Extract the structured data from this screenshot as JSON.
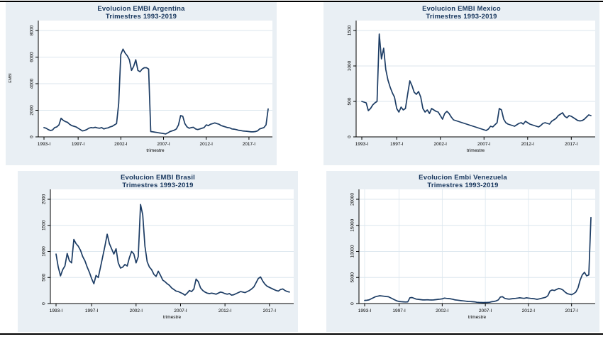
{
  "theme": {
    "page_bg": "#ffffff",
    "panel_bg": "#e9eff4",
    "plot_bg": "#ffffff",
    "grid_color": "#dbe6ee",
    "line_color": "#1c3c64",
    "title_color": "#17365d",
    "axis_color": "#000000",
    "rule_color": "#000000"
  },
  "chart_data": [
    {
      "type": "line",
      "country": "Argentina",
      "title": "Evolucion EMBI Argentina",
      "subtitle": "Trimestres 1993-2019",
      "xlabel": "trimestre",
      "ylabel": "EMBI",
      "x_unit": "quarter",
      "x_range": [
        "1993-I",
        "2019-II"
      ],
      "ylim": [
        0,
        8000
      ],
      "yticks": [
        0,
        2000,
        4000,
        6000,
        8000
      ],
      "xticks": [
        {
          "q": 0,
          "label": "1993-I"
        },
        {
          "q": 16,
          "label": "1997-I"
        },
        {
          "q": 36,
          "label": "2002-I"
        },
        {
          "q": 56,
          "label": "2007-I"
        },
        {
          "q": 76,
          "label": "2012-I"
        },
        {
          "q": 96,
          "label": "2017-I"
        }
      ],
      "grid_horizontal": true,
      "grid_vertical": false,
      "values": [
        700,
        650,
        550,
        480,
        520,
        700,
        750,
        900,
        1400,
        1250,
        1150,
        1100,
        950,
        850,
        800,
        750,
        650,
        550,
        450,
        480,
        550,
        650,
        700,
        680,
        720,
        680,
        650,
        700,
        600,
        650,
        680,
        750,
        800,
        900,
        1000,
        2500,
        6200,
        6600,
        6300,
        6100,
        5800,
        5000,
        5300,
        5800,
        5000,
        4900,
        5100,
        5200,
        5200,
        5100,
        400,
        380,
        350,
        330,
        300,
        280,
        250,
        220,
        300,
        400,
        450,
        500,
        600,
        900,
        1600,
        1550,
        1000,
        750,
        650,
        700,
        720,
        600,
        550,
        600,
        650,
        700,
        900,
        850,
        950,
        1000,
        1050,
        1000,
        950,
        850,
        800,
        750,
        700,
        680,
        600,
        580,
        550,
        500,
        480,
        450,
        430,
        420,
        400,
        380,
        380,
        400,
        450,
        600,
        650,
        700,
        900,
        2100
      ]
    },
    {
      "type": "line",
      "country": "Mexico",
      "title": "Evolucion EMBI Mexico",
      "subtitle": "Trimestres 1993-2019",
      "xlabel": "trimestre",
      "ylabel": "",
      "x_unit": "quarter",
      "x_range": [
        "1993-I",
        "2019-II"
      ],
      "ylim": [
        0,
        1500
      ],
      "yticks": [
        0,
        500,
        1000,
        1500
      ],
      "xticks": [
        {
          "q": 0,
          "label": "1993-I"
        },
        {
          "q": 16,
          "label": "1997-I"
        },
        {
          "q": 36,
          "label": "2002-I"
        },
        {
          "q": 56,
          "label": "2007-I"
        },
        {
          "q": 76,
          "label": "2012-I"
        },
        {
          "q": 96,
          "label": "2017-I"
        }
      ],
      "grid_horizontal": true,
      "grid_vertical": false,
      "values": [
        500,
        490,
        480,
        370,
        400,
        450,
        480,
        500,
        1450,
        1100,
        1250,
        950,
        800,
        700,
        620,
        560,
        400,
        350,
        420,
        380,
        400,
        600,
        790,
        720,
        630,
        600,
        640,
        560,
        400,
        350,
        380,
        330,
        400,
        380,
        360,
        350,
        300,
        250,
        330,
        360,
        330,
        280,
        240,
        230,
        220,
        210,
        200,
        190,
        180,
        170,
        160,
        150,
        140,
        130,
        120,
        110,
        100,
        90,
        110,
        150,
        140,
        170,
        200,
        400,
        380,
        250,
        200,
        180,
        170,
        160,
        150,
        170,
        190,
        200,
        180,
        220,
        200,
        180,
        170,
        160,
        150,
        140,
        160,
        190,
        200,
        190,
        180,
        220,
        240,
        260,
        300,
        320,
        340,
        290,
        270,
        300,
        290,
        270,
        250,
        230,
        225,
        230,
        250,
        280,
        310,
        300
      ]
    },
    {
      "type": "line",
      "country": "Brasil",
      "title": "Evolucion EMBI Brasil",
      "subtitle": "Trimestres 1993-2019",
      "xlabel": "trimestre",
      "ylabel": "",
      "x_unit": "quarter",
      "x_range": [
        "1993-I",
        "2019-II"
      ],
      "ylim": [
        0,
        2000
      ],
      "yticks": [
        0,
        500,
        1000,
        1500,
        2000
      ],
      "xticks": [
        {
          "q": 0,
          "label": "1993-I"
        },
        {
          "q": 16,
          "label": "1997-I"
        },
        {
          "q": 36,
          "label": "2002-I"
        },
        {
          "q": 56,
          "label": "2007-I"
        },
        {
          "q": 76,
          "label": "2012-I"
        },
        {
          "q": 96,
          "label": "2017-I"
        }
      ],
      "grid_horizontal": true,
      "grid_vertical": false,
      "values": [
        950,
        700,
        530,
        650,
        720,
        960,
        820,
        780,
        1230,
        1150,
        1100,
        1020,
        900,
        820,
        700,
        600,
        480,
        380,
        540,
        500,
        700,
        900,
        1100,
        1330,
        1150,
        1050,
        950,
        1050,
        780,
        680,
        700,
        750,
        720,
        880,
        1000,
        950,
        780,
        900,
        1900,
        1700,
        1100,
        800,
        700,
        650,
        560,
        520,
        620,
        540,
        450,
        420,
        380,
        350,
        300,
        270,
        240,
        230,
        210,
        190,
        160,
        200,
        250,
        230,
        280,
        470,
        420,
        300,
        250,
        220,
        200,
        190,
        200,
        190,
        180,
        200,
        220,
        210,
        190,
        180,
        190,
        160,
        170,
        190,
        210,
        230,
        220,
        210,
        230,
        250,
        280,
        320,
        400,
        480,
        510,
        430,
        370,
        330,
        310,
        290,
        270,
        250,
        240,
        270,
        280,
        250,
        230,
        220
      ]
    },
    {
      "type": "line",
      "country": "Venezuela",
      "title": "Evolucion Embi Venezuela",
      "subtitle": "Trimestres 1993-2019",
      "xlabel": "trimestre",
      "ylabel": "",
      "x_unit": "quarter",
      "x_range": [
        "1993-I",
        "2019-II"
      ],
      "ylim": [
        0,
        20000
      ],
      "yticks": [
        0,
        5000,
        10000,
        15000,
        20000
      ],
      "xticks": [
        {
          "q": 0,
          "label": "1993-I"
        },
        {
          "q": 16,
          "label": "1997-I"
        },
        {
          "q": 36,
          "label": "2002-I"
        },
        {
          "q": 56,
          "label": "2007-I"
        },
        {
          "q": 76,
          "label": "2012-I"
        },
        {
          "q": 96,
          "label": "2017-I"
        }
      ],
      "grid_horizontal": true,
      "grid_vertical": true,
      "values": [
        600,
        620,
        700,
        900,
        1100,
        1300,
        1400,
        1500,
        1450,
        1400,
        1350,
        1300,
        1100,
        900,
        700,
        500,
        400,
        350,
        330,
        300,
        320,
        1100,
        1150,
        1000,
        850,
        800,
        750,
        700,
        700,
        720,
        700,
        680,
        700,
        750,
        800,
        850,
        900,
        1050,
        1000,
        950,
        900,
        800,
        700,
        650,
        600,
        550,
        500,
        450,
        400,
        380,
        350,
        320,
        250,
        220,
        200,
        190,
        200,
        220,
        250,
        350,
        400,
        500,
        700,
        1250,
        1300,
        1000,
        900,
        850,
        900,
        950,
        1000,
        1050,
        1100,
        1050,
        1000,
        1100,
        1050,
        1000,
        950,
        900,
        800,
        900,
        1000,
        1100,
        1200,
        1500,
        2400,
        2600,
        2500,
        2700,
        2900,
        2800,
        2600,
        2200,
        1900,
        1800,
        1700,
        1900,
        2200,
        3000,
        4500,
        5500,
        6000,
        5300,
        5500,
        16500
      ]
    }
  ]
}
